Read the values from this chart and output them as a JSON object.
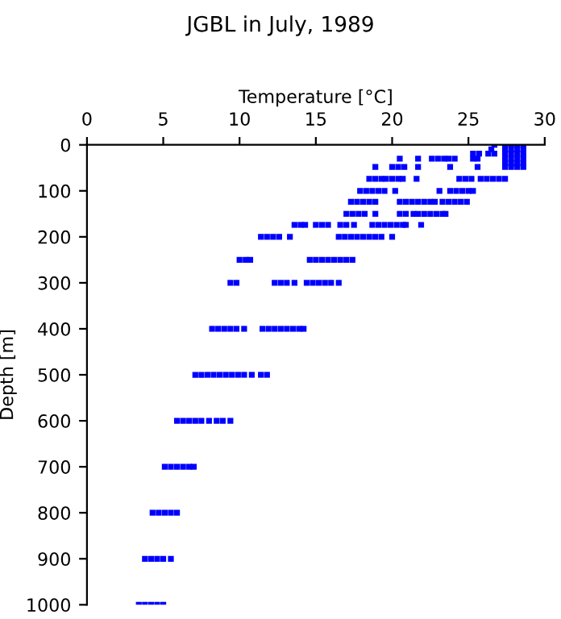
{
  "chart_data": {
    "type": "scatter",
    "title": "JGBL in July, 1989",
    "xlabel": "Temperature [°C]",
    "ylabel": "Depth [m]",
    "marker": "square",
    "grid": false,
    "xlim": [
      0,
      30
    ],
    "xticks": [
      0,
      5,
      10,
      15,
      20,
      25,
      30
    ],
    "ylim": [
      1000,
      0
    ],
    "yticks": [
      0,
      100,
      200,
      300,
      400,
      500,
      600,
      700,
      800,
      900,
      1000
    ],
    "series": [
      {
        "color": "#0000ff",
        "x": [
          26.7,
          27.4,
          27.8,
          28.2,
          28.6,
          26.5,
          27.4,
          27.8,
          28.2,
          28.6,
          25.3,
          25.7,
          26.3,
          26.7,
          27.4,
          27.8,
          28.2,
          28.6,
          20.5,
          21.7,
          22.6,
          23.0,
          23.4,
          23.7,
          24.1,
          25.3,
          25.6,
          27.4,
          27.8,
          28.2,
          28.6,
          27.4,
          27.8,
          28.2,
          28.6,
          18.9,
          20.0,
          20.4,
          20.8,
          21.7,
          23.8,
          25.6,
          27.4,
          27.8,
          28.2,
          28.6,
          18.5,
          18.9,
          19.3,
          19.6,
          20.0,
          20.4,
          20.7,
          21.6,
          24.4,
          24.8,
          25.2,
          25.8,
          26.2,
          26.6,
          27.0,
          27.4,
          17.9,
          18.3,
          18.7,
          19.1,
          19.5,
          20.2,
          23.1,
          23.8,
          24.2,
          24.6,
          25.0,
          25.3,
          17.3,
          17.7,
          18.1,
          18.5,
          18.9,
          20.5,
          20.9,
          21.3,
          21.7,
          22.1,
          22.5,
          22.8,
          23.3,
          23.7,
          24.1,
          24.5,
          24.9,
          17.0,
          17.4,
          17.8,
          18.2,
          18.9,
          20.5,
          20.9,
          21.4,
          21.7,
          22.1,
          22.5,
          22.9,
          23.3,
          23.5,
          13.6,
          14.0,
          14.3,
          15.0,
          15.4,
          15.8,
          16.6,
          17.0,
          17.5,
          18.7,
          19.1,
          19.5,
          19.9,
          20.3,
          20.7,
          20.9,
          21.9,
          11.4,
          11.8,
          12.2,
          12.6,
          13.3,
          16.5,
          16.9,
          17.3,
          17.7,
          18.1,
          18.5,
          18.9,
          19.3,
          20.0,
          10.0,
          10.4,
          10.7,
          14.6,
          15.0,
          15.4,
          15.8,
          16.2,
          16.6,
          17.0,
          17.4,
          9.4,
          9.8,
          12.3,
          12.7,
          13.1,
          13.6,
          14.4,
          14.8,
          15.2,
          15.6,
          16.0,
          16.5,
          8.2,
          8.6,
          9.0,
          9.4,
          9.8,
          10.3,
          11.5,
          11.9,
          12.3,
          12.7,
          13.1,
          13.5,
          13.9,
          14.2,
          7.1,
          7.5,
          7.9,
          8.3,
          8.7,
          9.1,
          9.5,
          9.9,
          10.3,
          10.8,
          11.4,
          11.8,
          5.9,
          6.3,
          6.7,
          7.1,
          7.5,
          8.0,
          8.5,
          8.9,
          9.4,
          5.1,
          5.5,
          5.9,
          6.3,
          6.7,
          7.0,
          4.3,
          4.7,
          5.1,
          5.5,
          5.9,
          3.8,
          4.2,
          4.6,
          5.0,
          5.5,
          3.4,
          3.8,
          4.2,
          4.6,
          5.0
        ],
        "values": [
          0,
          0,
          0,
          0,
          0,
          10,
          10,
          10,
          10,
          10,
          19,
          19,
          19,
          19,
          19,
          19,
          19,
          19,
          30,
          30,
          30,
          30,
          30,
          30,
          30,
          30,
          30,
          30,
          30,
          30,
          30,
          40,
          40,
          40,
          40,
          48,
          48,
          48,
          48,
          48,
          48,
          48,
          48,
          48,
          48,
          48,
          74,
          74,
          74,
          74,
          74,
          74,
          74,
          74,
          74,
          74,
          74,
          74,
          74,
          74,
          74,
          74,
          100,
          100,
          100,
          100,
          100,
          100,
          100,
          100,
          100,
          100,
          100,
          100,
          124,
          124,
          124,
          124,
          124,
          124,
          124,
          124,
          124,
          124,
          124,
          124,
          124,
          124,
          124,
          124,
          124,
          150,
          150,
          150,
          150,
          150,
          150,
          150,
          150,
          150,
          150,
          150,
          150,
          150,
          150,
          174,
          174,
          174,
          174,
          174,
          174,
          174,
          174,
          174,
          174,
          174,
          174,
          174,
          174,
          174,
          174,
          174,
          200,
          200,
          200,
          200,
          200,
          200,
          200,
          200,
          200,
          200,
          200,
          200,
          200,
          200,
          250,
          250,
          250,
          250,
          250,
          250,
          250,
          250,
          250,
          250,
          250,
          300,
          300,
          300,
          300,
          300,
          300,
          300,
          300,
          300,
          300,
          300,
          300,
          400,
          400,
          400,
          400,
          400,
          400,
          400,
          400,
          400,
          400,
          400,
          400,
          400,
          400,
          500,
          500,
          500,
          500,
          500,
          500,
          500,
          500,
          500,
          500,
          500,
          500,
          600,
          600,
          600,
          600,
          600,
          600,
          600,
          600,
          600,
          700,
          700,
          700,
          700,
          700,
          700,
          800,
          800,
          800,
          800,
          800,
          900,
          900,
          900,
          900,
          900,
          1000,
          1000,
          1000,
          1000,
          1000
        ]
      }
    ]
  }
}
